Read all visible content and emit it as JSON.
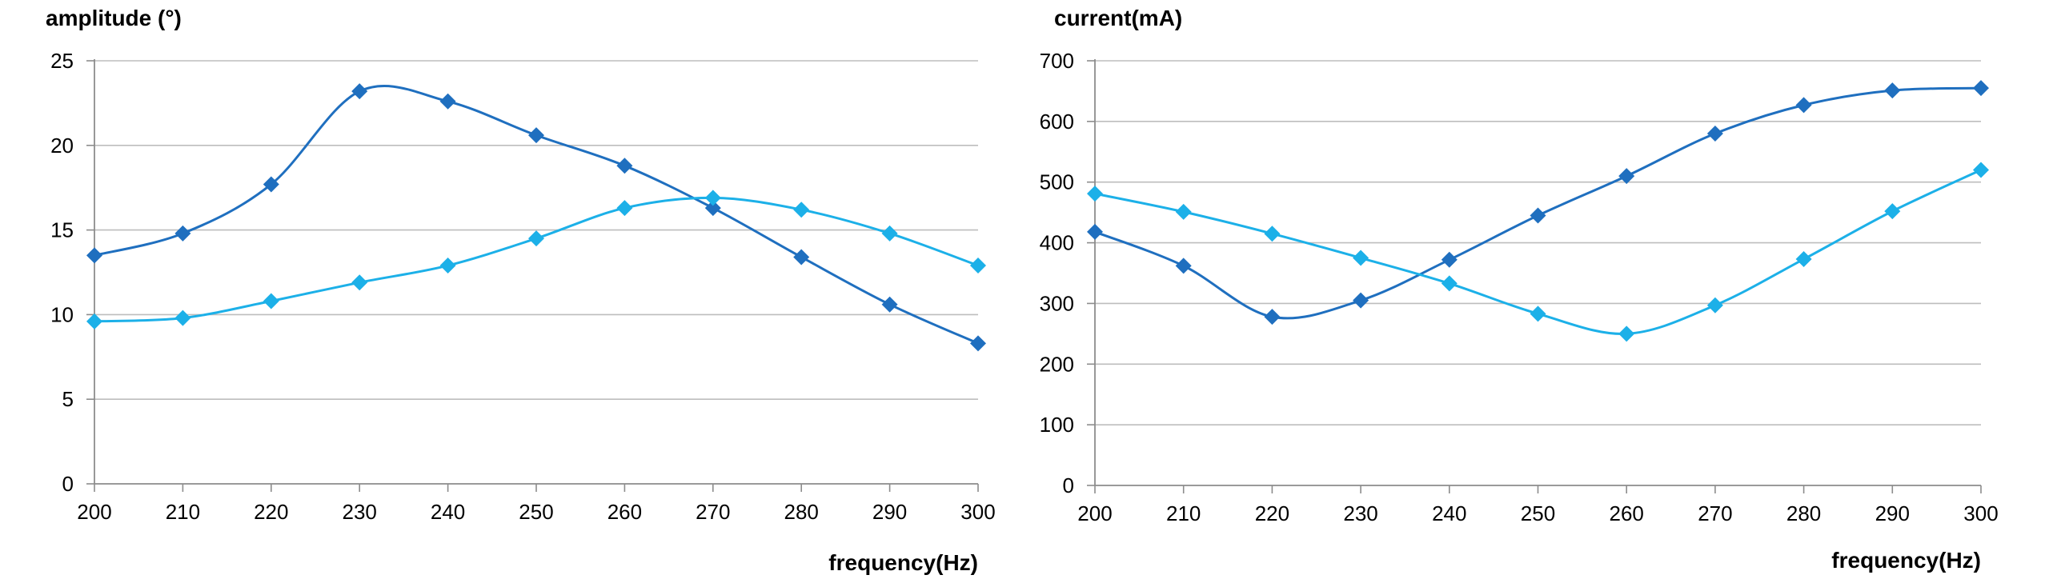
{
  "chart_data": [
    {
      "type": "line",
      "title": "",
      "ylabel": "amplitude (°)",
      "xlabel": "frequency(Hz)",
      "x": [
        200,
        210,
        220,
        230,
        240,
        250,
        260,
        270,
        280,
        290,
        300
      ],
      "xticks": [
        "200",
        "210",
        "220",
        "230",
        "240",
        "250",
        "260",
        "270",
        "280",
        "290",
        "300"
      ],
      "yticks": [
        "0",
        "5",
        "10",
        "15",
        "20",
        "25"
      ],
      "ylim": [
        0,
        25
      ],
      "grid": true,
      "marker": "diamond",
      "smooth": true,
      "series": [
        {
          "values": [
            13.5,
            14.8,
            17.7,
            23.2,
            22.6,
            20.6,
            18.8,
            16.3,
            13.4,
            10.6,
            8.3
          ],
          "color": "#1f6fbf"
        },
        {
          "values": [
            9.6,
            9.8,
            10.8,
            11.9,
            12.9,
            14.5,
            16.3,
            16.9,
            16.2,
            14.8,
            12.9
          ],
          "color": "#1cb0e8"
        }
      ]
    },
    {
      "type": "line",
      "title": "",
      "ylabel": "current(mA)",
      "xlabel": "frequency(Hz)",
      "x": [
        200,
        210,
        220,
        230,
        240,
        250,
        260,
        270,
        280,
        290,
        300
      ],
      "xticks": [
        "200",
        "210",
        "220",
        "230",
        "240",
        "250",
        "260",
        "270",
        "280",
        "290",
        "300"
      ],
      "yticks": [
        "0",
        "100",
        "200",
        "300",
        "400",
        "500",
        "600",
        "700"
      ],
      "ylim": [
        0,
        700
      ],
      "grid": true,
      "marker": "diamond",
      "smooth": true,
      "series": [
        {
          "values": [
            418,
            362,
            278,
            305,
            372,
            445,
            510,
            580,
            627,
            651,
            655
          ],
          "color": "#1f6fbf"
        },
        {
          "values": [
            481,
            451,
            415,
            375,
            333,
            283,
            250,
            297,
            373,
            452,
            520
          ],
          "color": "#1cb0e8"
        }
      ]
    }
  ]
}
